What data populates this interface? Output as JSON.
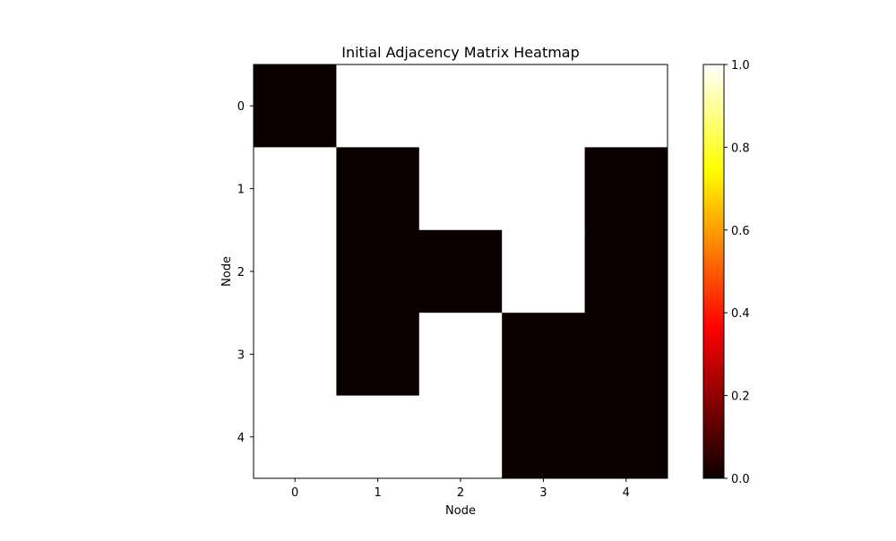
{
  "chart_data": {
    "type": "heatmap",
    "title": "Initial Adjacency Matrix Heatmap",
    "xlabel": "Node",
    "ylabel": "Node",
    "x_categories": [
      "0",
      "1",
      "2",
      "3",
      "4"
    ],
    "y_categories": [
      "0",
      "1",
      "2",
      "3",
      "4"
    ],
    "values": [
      [
        0,
        1,
        1,
        1,
        1
      ],
      [
        1,
        0,
        1,
        1,
        0
      ],
      [
        1,
        0,
        0,
        1,
        0
      ],
      [
        1,
        0,
        1,
        0,
        0
      ],
      [
        1,
        1,
        1,
        0,
        0
      ]
    ],
    "colormap": "hot",
    "colorbar": {
      "range": [
        0,
        1
      ],
      "ticks": [
        "0.0",
        "0.2",
        "0.4",
        "0.6",
        "0.8",
        "1.0"
      ]
    },
    "colors": {
      "low": "#0b0000",
      "high": "#ffffff"
    }
  }
}
